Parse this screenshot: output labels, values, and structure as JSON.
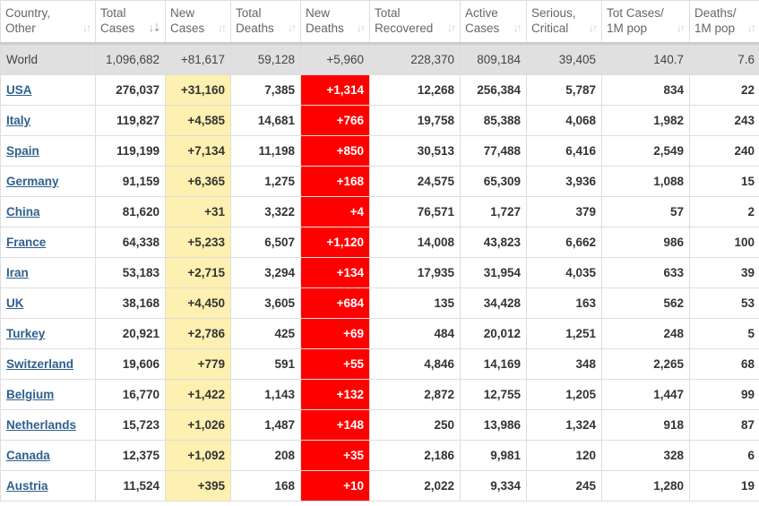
{
  "columns": [
    {
      "l1": "Country,",
      "l2": "Other"
    },
    {
      "l1": "Total",
      "l2": "Cases",
      "active": true
    },
    {
      "l1": "New",
      "l2": "Cases"
    },
    {
      "l1": "Total",
      "l2": "Deaths"
    },
    {
      "l1": "New",
      "l2": "Deaths"
    },
    {
      "l1": "Total",
      "l2": "Recovered"
    },
    {
      "l1": "Active",
      "l2": "Cases"
    },
    {
      "l1": "Serious,",
      "l2": "Critical"
    },
    {
      "l1": "Tot Cases/",
      "l2": "1M pop"
    },
    {
      "l1": "Deaths/",
      "l2": "1M pop"
    }
  ],
  "sort_icon": "sort-arrows-icon",
  "colors": {
    "new_cases_bg": "#fdf0b0",
    "new_deaths_bg": "#ff0000",
    "world_row_bg": "#e0e0e0",
    "link": "#2f5f8f"
  },
  "world": [
    "World",
    "1,096,682",
    "+81,617",
    "59,128",
    "+5,960",
    "228,370",
    "809,184",
    "39,405",
    "140.7",
    "7.6"
  ],
  "rows": [
    [
      "USA",
      "276,037",
      "+31,160",
      "7,385",
      "+1,314",
      "12,268",
      "256,384",
      "5,787",
      "834",
      "22"
    ],
    [
      "Italy",
      "119,827",
      "+4,585",
      "14,681",
      "+766",
      "19,758",
      "85,388",
      "4,068",
      "1,982",
      "243"
    ],
    [
      "Spain",
      "119,199",
      "+7,134",
      "11,198",
      "+850",
      "30,513",
      "77,488",
      "6,416",
      "2,549",
      "240"
    ],
    [
      "Germany",
      "91,159",
      "+6,365",
      "1,275",
      "+168",
      "24,575",
      "65,309",
      "3,936",
      "1,088",
      "15"
    ],
    [
      "China",
      "81,620",
      "+31",
      "3,322",
      "+4",
      "76,571",
      "1,727",
      "379",
      "57",
      "2"
    ],
    [
      "France",
      "64,338",
      "+5,233",
      "6,507",
      "+1,120",
      "14,008",
      "43,823",
      "6,662",
      "986",
      "100"
    ],
    [
      "Iran",
      "53,183",
      "+2,715",
      "3,294",
      "+134",
      "17,935",
      "31,954",
      "4,035",
      "633",
      "39"
    ],
    [
      "UK",
      "38,168",
      "+4,450",
      "3,605",
      "+684",
      "135",
      "34,428",
      "163",
      "562",
      "53"
    ],
    [
      "Turkey",
      "20,921",
      "+2,786",
      "425",
      "+69",
      "484",
      "20,012",
      "1,251",
      "248",
      "5"
    ],
    [
      "Switzerland",
      "19,606",
      "+779",
      "591",
      "+55",
      "4,846",
      "14,169",
      "348",
      "2,265",
      "68"
    ],
    [
      "Belgium",
      "16,770",
      "+1,422",
      "1,143",
      "+132",
      "2,872",
      "12,755",
      "1,205",
      "1,447",
      "99"
    ],
    [
      "Netherlands",
      "15,723",
      "+1,026",
      "1,487",
      "+148",
      "250",
      "13,986",
      "1,324",
      "918",
      "87"
    ],
    [
      "Canada",
      "12,375",
      "+1,092",
      "208",
      "+35",
      "2,186",
      "9,981",
      "120",
      "328",
      "6"
    ],
    [
      "Austria",
      "11,524",
      "+395",
      "168",
      "+10",
      "2,022",
      "9,334",
      "245",
      "1,280",
      "19"
    ]
  ]
}
